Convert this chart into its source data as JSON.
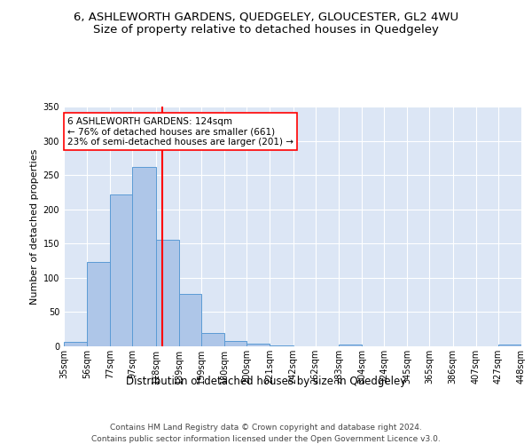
{
  "title": "6, ASHLEWORTH GARDENS, QUEDGELEY, GLOUCESTER, GL2 4WU",
  "subtitle": "Size of property relative to detached houses in Quedgeley",
  "xlabel": "Distribution of detached houses by size in Quedgeley",
  "ylabel": "Number of detached properties",
  "bar_edges": [
    35,
    56,
    77,
    97,
    118,
    139,
    159,
    180,
    200,
    221,
    242,
    262,
    283,
    304,
    324,
    345,
    365,
    386,
    407,
    427,
    448
  ],
  "bar_heights": [
    6,
    123,
    222,
    262,
    155,
    77,
    19,
    8,
    4,
    1,
    0,
    0,
    2,
    0,
    0,
    0,
    0,
    0,
    0,
    2
  ],
  "bar_color": "#aec6e8",
  "bar_edge_color": "#5b9bd5",
  "vline_x": 124,
  "vline_color": "red",
  "annotation_text": "6 ASHLEWORTH GARDENS: 124sqm\n← 76% of detached houses are smaller (661)\n23% of semi-detached houses are larger (201) →",
  "annotation_box_color": "white",
  "annotation_box_edgecolor": "red",
  "ylim": [
    0,
    350
  ],
  "yticks": [
    0,
    50,
    100,
    150,
    200,
    250,
    300,
    350
  ],
  "plot_background": "#dce6f5",
  "footer_line1": "Contains HM Land Registry data © Crown copyright and database right 2024.",
  "footer_line2": "Contains public sector information licensed under the Open Government Licence v3.0.",
  "title_fontsize": 9.5,
  "subtitle_fontsize": 9.5,
  "xlabel_fontsize": 8.5,
  "ylabel_fontsize": 8,
  "tick_fontsize": 7,
  "annotation_fontsize": 7.5,
  "footer_fontsize": 6.5
}
